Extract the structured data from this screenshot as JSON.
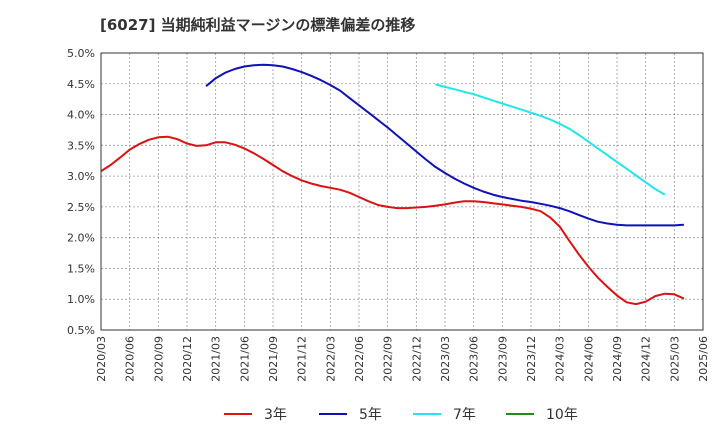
{
  "chart_data": {
    "type": "line",
    "title": "[6027]  当期純利益マージンの標準偏差の推移",
    "y_ticks": [
      "5.0%",
      "4.5%",
      "4.0%",
      "3.5%",
      "3.0%",
      "2.5%",
      "2.0%",
      "1.5%",
      "1.0%",
      "0.5%"
    ],
    "ylim": [
      0.5,
      5.0
    ],
    "x_ticks": [
      "2020/03",
      "2020/06",
      "2020/09",
      "2020/12",
      "2021/03",
      "2021/06",
      "2021/09",
      "2021/12",
      "2022/03",
      "2022/06",
      "2022/09",
      "2022/12",
      "2023/03",
      "2023/06",
      "2023/09",
      "2023/12",
      "2024/03",
      "2024/06",
      "2024/09",
      "2024/12",
      "2025/03",
      "2025/06"
    ],
    "grid": true,
    "legend_position": "bottom",
    "series": [
      {
        "name": "3年",
        "color": "#dd1111",
        "values": [
          [
            "2020/03",
            3.08
          ],
          [
            "2020/04",
            3.18
          ],
          [
            "2020/05",
            3.3
          ],
          [
            "2020/06",
            3.43
          ],
          [
            "2020/07",
            3.52
          ],
          [
            "2020/08",
            3.59
          ],
          [
            "2020/09",
            3.63
          ],
          [
            "2020/10",
            3.64
          ],
          [
            "2020/11",
            3.6
          ],
          [
            "2020/12",
            3.53
          ],
          [
            "2021/01",
            3.49
          ],
          [
            "2021/02",
            3.5
          ],
          [
            "2021/03",
            3.55
          ],
          [
            "2021/04",
            3.55
          ],
          [
            "2021/05",
            3.51
          ],
          [
            "2021/06",
            3.45
          ],
          [
            "2021/07",
            3.37
          ],
          [
            "2021/08",
            3.28
          ],
          [
            "2021/09",
            3.18
          ],
          [
            "2021/10",
            3.08
          ],
          [
            "2021/11",
            3.0
          ],
          [
            "2021/12",
            2.93
          ],
          [
            "2022/01",
            2.88
          ],
          [
            "2022/02",
            2.84
          ],
          [
            "2022/03",
            2.81
          ],
          [
            "2022/04",
            2.78
          ],
          [
            "2022/05",
            2.73
          ],
          [
            "2022/06",
            2.66
          ],
          [
            "2022/07",
            2.59
          ],
          [
            "2022/08",
            2.53
          ],
          [
            "2022/09",
            2.5
          ],
          [
            "2022/10",
            2.48
          ],
          [
            "2022/11",
            2.48
          ],
          [
            "2022/12",
            2.49
          ],
          [
            "2023/01",
            2.5
          ],
          [
            "2023/02",
            2.52
          ],
          [
            "2023/03",
            2.54
          ],
          [
            "2023/04",
            2.57
          ],
          [
            "2023/05",
            2.59
          ],
          [
            "2023/06",
            2.59
          ],
          [
            "2023/07",
            2.58
          ],
          [
            "2023/08",
            2.56
          ],
          [
            "2023/09",
            2.54
          ],
          [
            "2023/10",
            2.52
          ],
          [
            "2023/11",
            2.5
          ],
          [
            "2023/12",
            2.47
          ],
          [
            "2024/01",
            2.43
          ],
          [
            "2024/02",
            2.33
          ],
          [
            "2024/03",
            2.18
          ],
          [
            "2024/04",
            1.95
          ],
          [
            "2024/05",
            1.73
          ],
          [
            "2024/06",
            1.53
          ],
          [
            "2024/07",
            1.35
          ],
          [
            "2024/08",
            1.2
          ],
          [
            "2024/09",
            1.06
          ],
          [
            "2024/10",
            0.95
          ],
          [
            "2024/11",
            0.92
          ],
          [
            "2024/12",
            0.96
          ],
          [
            "2025/01",
            1.05
          ],
          [
            "2025/02",
            1.09
          ],
          [
            "2025/03",
            1.08
          ],
          [
            "2025/04",
            1.01
          ]
        ]
      },
      {
        "name": "5年",
        "color": "#1111bb",
        "values": [
          [
            "2021/02",
            4.46
          ],
          [
            "2021/03",
            4.59
          ],
          [
            "2021/04",
            4.68
          ],
          [
            "2021/05",
            4.74
          ],
          [
            "2021/06",
            4.78
          ],
          [
            "2021/07",
            4.8
          ],
          [
            "2021/08",
            4.81
          ],
          [
            "2021/09",
            4.8
          ],
          [
            "2021/10",
            4.78
          ],
          [
            "2021/11",
            4.74
          ],
          [
            "2021/12",
            4.69
          ],
          [
            "2022/01",
            4.63
          ],
          [
            "2022/02",
            4.56
          ],
          [
            "2022/03",
            4.48
          ],
          [
            "2022/04",
            4.39
          ],
          [
            "2022/05",
            4.27
          ],
          [
            "2022/06",
            4.15
          ],
          [
            "2022/07",
            4.03
          ],
          [
            "2022/08",
            3.91
          ],
          [
            "2022/09",
            3.79
          ],
          [
            "2022/10",
            3.66
          ],
          [
            "2022/11",
            3.53
          ],
          [
            "2022/12",
            3.4
          ],
          [
            "2023/01",
            3.27
          ],
          [
            "2023/02",
            3.15
          ],
          [
            "2023/03",
            3.05
          ],
          [
            "2023/04",
            2.96
          ],
          [
            "2023/05",
            2.88
          ],
          [
            "2023/06",
            2.81
          ],
          [
            "2023/07",
            2.75
          ],
          [
            "2023/08",
            2.7
          ],
          [
            "2023/09",
            2.66
          ],
          [
            "2023/10",
            2.63
          ],
          [
            "2023/11",
            2.6
          ],
          [
            "2023/12",
            2.58
          ],
          [
            "2024/01",
            2.55
          ],
          [
            "2024/02",
            2.52
          ],
          [
            "2024/03",
            2.48
          ],
          [
            "2024/04",
            2.43
          ],
          [
            "2024/05",
            2.37
          ],
          [
            "2024/06",
            2.31
          ],
          [
            "2024/07",
            2.26
          ],
          [
            "2024/08",
            2.23
          ],
          [
            "2024/09",
            2.21
          ],
          [
            "2024/10",
            2.2
          ],
          [
            "2024/11",
            2.2
          ],
          [
            "2024/12",
            2.2
          ],
          [
            "2025/01",
            2.2
          ],
          [
            "2025/02",
            2.2
          ],
          [
            "2025/03",
            2.2
          ],
          [
            "2025/04",
            2.21
          ]
        ]
      },
      {
        "name": "7年",
        "color": "#22e5ee",
        "values": [
          [
            "2023/02",
            4.49
          ],
          [
            "2023/03",
            4.45
          ],
          [
            "2023/04",
            4.41
          ],
          [
            "2023/05",
            4.37
          ],
          [
            "2023/06",
            4.33
          ],
          [
            "2023/07",
            4.28
          ],
          [
            "2023/08",
            4.23
          ],
          [
            "2023/09",
            4.18
          ],
          [
            "2023/10",
            4.13
          ],
          [
            "2023/11",
            4.08
          ],
          [
            "2023/12",
            4.03
          ],
          [
            "2024/01",
            3.98
          ],
          [
            "2024/02",
            3.92
          ],
          [
            "2024/03",
            3.85
          ],
          [
            "2024/04",
            3.77
          ],
          [
            "2024/05",
            3.67
          ],
          [
            "2024/06",
            3.56
          ],
          [
            "2024/07",
            3.45
          ],
          [
            "2024/08",
            3.34
          ],
          [
            "2024/09",
            3.23
          ],
          [
            "2024/10",
            3.12
          ],
          [
            "2024/11",
            3.01
          ],
          [
            "2024/12",
            2.9
          ],
          [
            "2025/01",
            2.79
          ],
          [
            "2025/02",
            2.7
          ]
        ]
      },
      {
        "name": "10年",
        "color": "#228822",
        "values": []
      }
    ]
  }
}
